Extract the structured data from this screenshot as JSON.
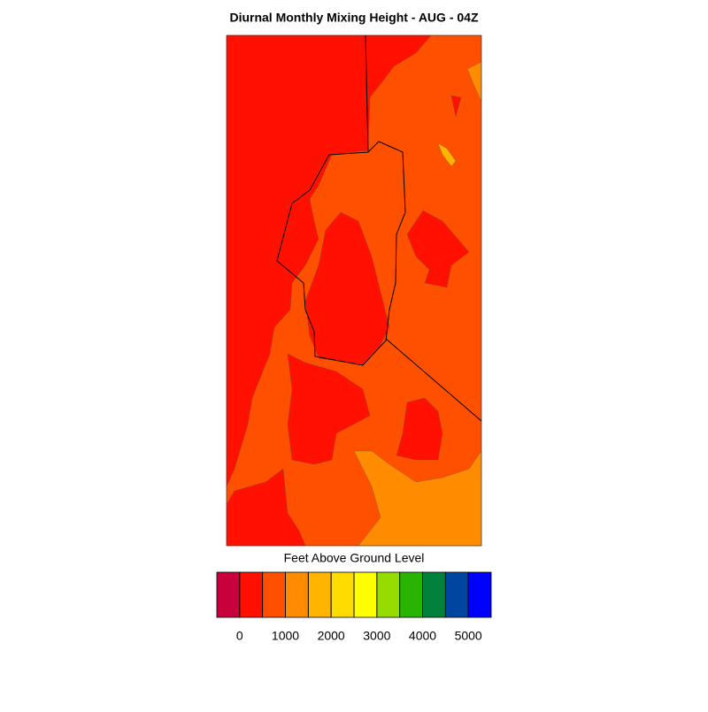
{
  "title": "Diurnal Monthly Mixing Height - AUG - 04Z",
  "colorbar": {
    "label": "Feet Above Ground Level",
    "levels": [
      0,
      500,
      1000,
      1500,
      2000,
      2500,
      3000,
      3500,
      4000,
      4500,
      5000
    ],
    "colors": [
      "#c8003c",
      "#ff1000",
      "#ff5000",
      "#ff8c00",
      "#ffb400",
      "#ffdc00",
      "#ffff00",
      "#96dc00",
      "#28b400",
      "#00823c",
      "#0046a0",
      "#0000ff"
    ],
    "ticks": [
      0,
      1000,
      2000,
      3000,
      4000,
      5000
    ]
  }
}
